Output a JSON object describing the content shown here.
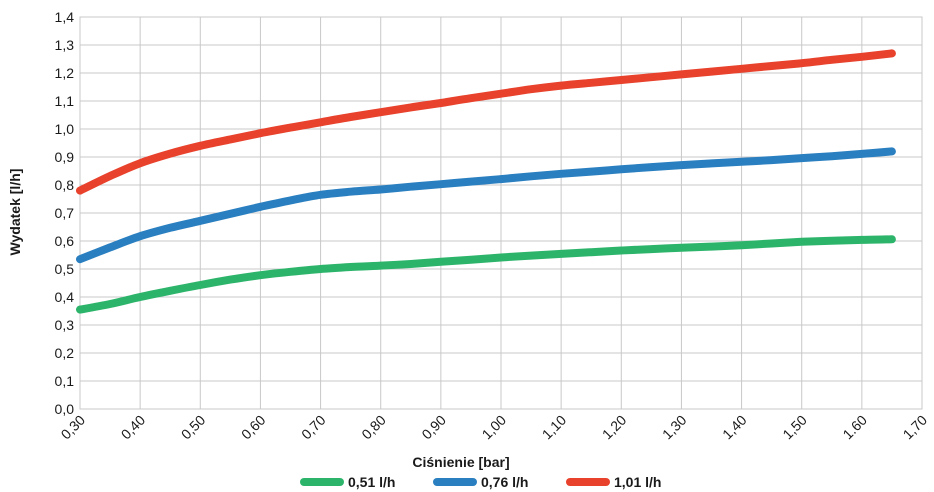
{
  "chart_data": {
    "type": "line",
    "xlabel": "Ciśnienie [bar]",
    "ylabel": "Wydatek [l/h]",
    "xlim": [
      0.3,
      1.7
    ],
    "ylim": [
      0.0,
      1.4
    ],
    "x_ticks": [
      "0,30",
      "0,40",
      "0,50",
      "0,60",
      "0,70",
      "0,80",
      "0,90",
      "1,00",
      "1,10",
      "1,20",
      "1,30",
      "1,40",
      "1,50",
      "1.60",
      "1,70"
    ],
    "y_ticks": [
      "0,0",
      "0,1",
      "0,2",
      "0,3",
      "0,4",
      "0,5",
      "0,6",
      "0,7",
      "0,8",
      "0,9",
      "1,0",
      "1,1",
      "1,2",
      "1,3",
      "1,4"
    ],
    "grid": true,
    "legend_position": "bottom",
    "x": [
      0.3,
      0.35,
      0.4,
      0.45,
      0.5,
      0.55,
      0.6,
      0.65,
      0.7,
      0.75,
      0.8,
      0.85,
      0.9,
      0.95,
      1.0,
      1.05,
      1.1,
      1.15,
      1.2,
      1.25,
      1.3,
      1.35,
      1.4,
      1.45,
      1.5,
      1.55,
      1.6,
      1.65
    ],
    "series": [
      {
        "name": "0,51 l/h",
        "color": "#2db46b",
        "values": [
          0.355,
          0.375,
          0.4,
          0.422,
          0.443,
          0.462,
          0.478,
          0.49,
          0.5,
          0.507,
          0.512,
          0.518,
          0.526,
          0.533,
          0.541,
          0.548,
          0.554,
          0.56,
          0.566,
          0.571,
          0.576,
          0.58,
          0.585,
          0.591,
          0.597,
          0.601,
          0.604,
          0.606
        ]
      },
      {
        "name": "0,76 l/h",
        "color": "#2a7fc0",
        "values": [
          0.535,
          0.577,
          0.617,
          0.647,
          0.672,
          0.697,
          0.722,
          0.745,
          0.765,
          0.776,
          0.784,
          0.794,
          0.803,
          0.812,
          0.821,
          0.831,
          0.84,
          0.848,
          0.856,
          0.864,
          0.871,
          0.877,
          0.883,
          0.889,
          0.896,
          0.903,
          0.911,
          0.92
        ]
      },
      {
        "name": "1,01 l/h",
        "color": "#e8412c",
        "values": [
          0.78,
          0.832,
          0.878,
          0.912,
          0.94,
          0.963,
          0.985,
          1.005,
          1.024,
          1.043,
          1.06,
          1.077,
          1.093,
          1.11,
          1.126,
          1.142,
          1.155,
          1.165,
          1.175,
          1.185,
          1.195,
          1.205,
          1.215,
          1.225,
          1.235,
          1.247,
          1.258,
          1.27
        ]
      }
    ]
  }
}
